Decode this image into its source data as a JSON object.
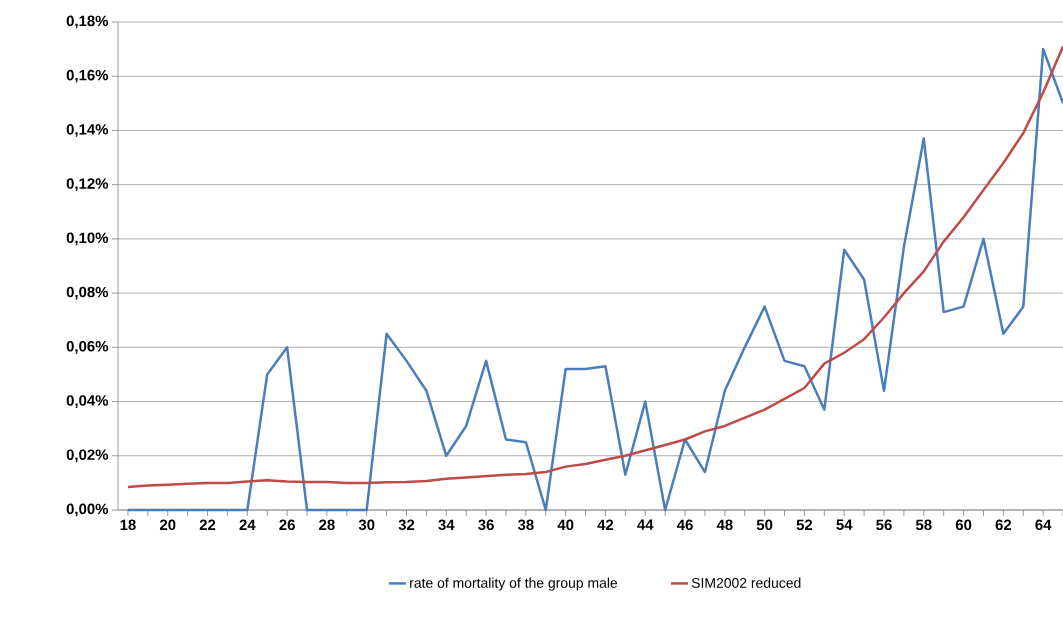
{
  "chart_data": {
    "type": "line",
    "categories": [
      "18",
      null,
      "20",
      null,
      "22",
      null,
      "24",
      null,
      "26",
      null,
      "28",
      null,
      "30",
      null,
      "32",
      null,
      "34",
      null,
      "36",
      null,
      "38",
      null,
      "40",
      null,
      "42",
      null,
      "44",
      null,
      "46",
      null,
      "48",
      null,
      "50",
      null,
      "52",
      null,
      "54",
      null,
      "56",
      null,
      "58",
      null,
      "60",
      null,
      "62",
      null,
      "64",
      null
    ],
    "series": [
      {
        "name": "rate of mortality of the group male",
        "color": "#4a7ebb",
        "values": [
          0,
          0,
          0,
          0,
          0,
          0,
          0,
          0.05,
          0.06,
          0,
          0,
          0,
          0,
          0.065,
          0.055,
          0.044,
          0.02,
          0.031,
          0.055,
          0.026,
          0.025,
          0,
          0.052,
          0.052,
          0.053,
          0.013,
          0.04,
          0,
          0.026,
          0.014,
          0.044,
          0.06,
          0.075,
          0.055,
          0.053,
          0.037,
          0.096,
          0.085,
          0.044,
          0.097,
          0.137,
          0.073,
          0.075,
          0.1,
          0.065,
          0.075,
          0.17,
          0.15
        ]
      },
      {
        "name": "SIM2002 reduced",
        "color": "#be4b48",
        "values": [
          0.0085,
          0.009,
          0.0093,
          0.0097,
          0.01,
          0.01,
          0.0105,
          0.011,
          0.0105,
          0.0103,
          0.0103,
          0.01,
          0.01,
          0.0102,
          0.0103,
          0.0107,
          0.0115,
          0.012,
          0.0125,
          0.013,
          0.0133,
          0.014,
          0.016,
          0.017,
          0.0185,
          0.02,
          0.022,
          0.024,
          0.026,
          0.029,
          0.031,
          0.034,
          0.037,
          0.041,
          0.045,
          0.054,
          0.058,
          0.063,
          0.071,
          0.08,
          0.088,
          0.099,
          0.108,
          0.118,
          0.128,
          0.139,
          0.154,
          0.171
        ]
      }
    ],
    "ylim": [
      0,
      0.18
    ],
    "yticks": [
      {
        "value": 0,
        "label": "0,00%"
      },
      {
        "value": 0.02,
        "label": "0,02%"
      },
      {
        "value": 0.04,
        "label": "0,04%"
      },
      {
        "value": 0.06,
        "label": "0,06%"
      },
      {
        "value": 0.08,
        "label": "0,08%"
      },
      {
        "value": 0.1,
        "label": "0,10%"
      },
      {
        "value": 0.12,
        "label": "0,12%"
      },
      {
        "value": 0.14,
        "label": "0,14%"
      },
      {
        "value": 0.16,
        "label": "0,16%"
      },
      {
        "value": 0.18,
        "label": "0,18%"
      }
    ],
    "grid": "y",
    "legend": "bottom",
    "marker": "none",
    "line_style": "solid"
  }
}
